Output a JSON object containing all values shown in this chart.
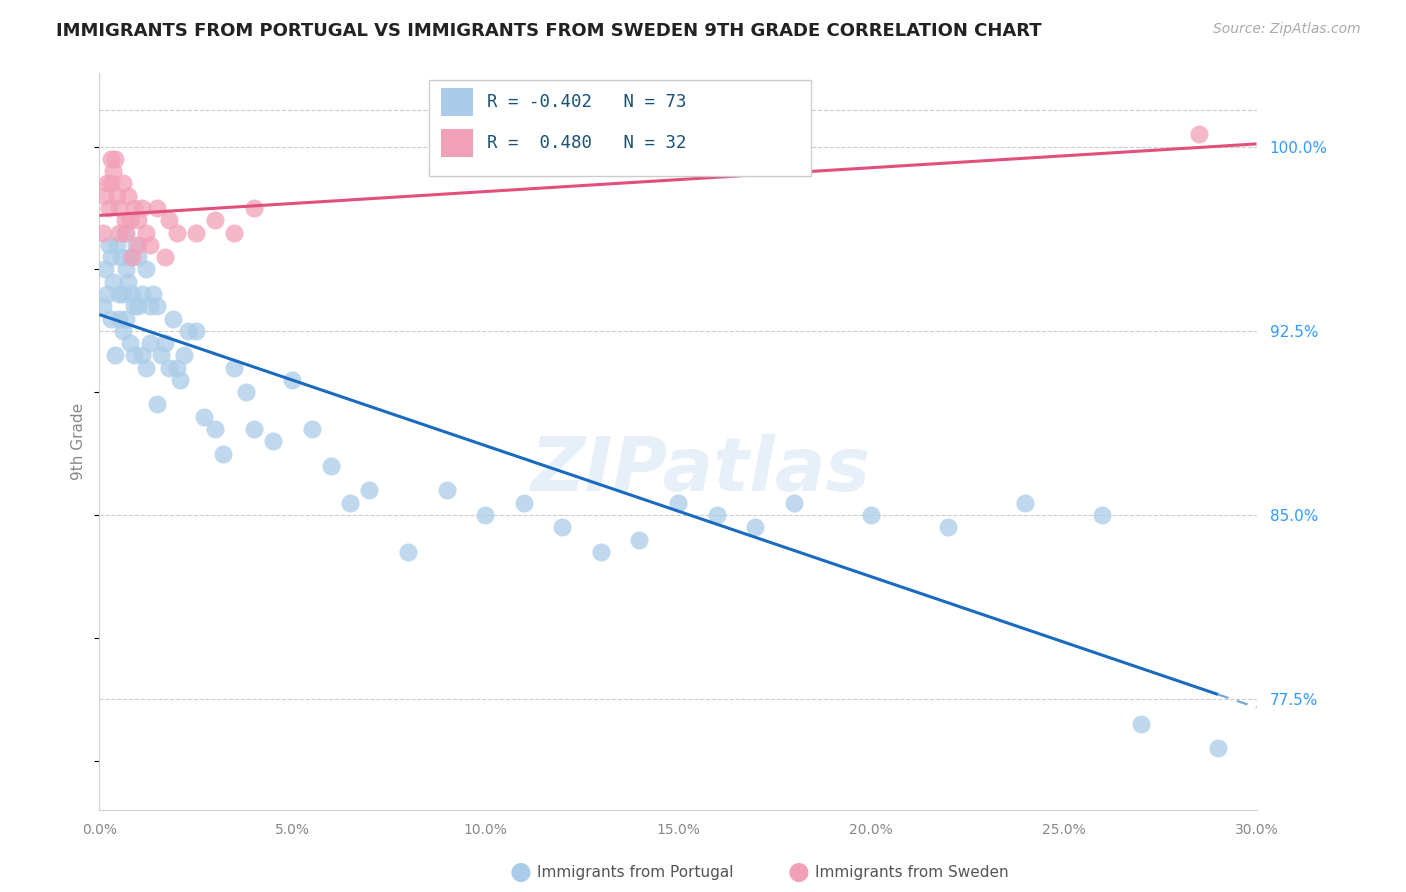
{
  "title": "IMMIGRANTS FROM PORTUGAL VS IMMIGRANTS FROM SWEDEN 9TH GRADE CORRELATION CHART",
  "source": "Source: ZipAtlas.com",
  "ylabel": "9th Grade",
  "ylabel_right_ticks": [
    77.5,
    85.0,
    92.5,
    100.0
  ],
  "xlim": [
    0.0,
    30.0
  ],
  "ylim": [
    73.0,
    103.0
  ],
  "r_portugal": -0.402,
  "n_portugal": 73,
  "r_sweden": 0.48,
  "n_sweden": 32,
  "color_portugal": "#aacce8",
  "color_sweden": "#f2a0b8",
  "line_color_portugal": "#1a6bbf",
  "line_color_sweden": "#e0507a",
  "watermark": "ZIPatlas",
  "portugal_x": [
    0.1,
    0.15,
    0.2,
    0.25,
    0.3,
    0.3,
    0.35,
    0.4,
    0.45,
    0.5,
    0.5,
    0.55,
    0.6,
    0.6,
    0.65,
    0.7,
    0.7,
    0.75,
    0.8,
    0.8,
    0.85,
    0.9,
    0.9,
    0.95,
    1.0,
    1.0,
    1.1,
    1.1,
    1.2,
    1.2,
    1.3,
    1.3,
    1.4,
    1.5,
    1.5,
    1.6,
    1.7,
    1.8,
    1.9,
    2.0,
    2.1,
    2.2,
    2.3,
    2.5,
    2.7,
    3.0,
    3.2,
    3.5,
    3.8,
    4.0,
    4.5,
    5.0,
    5.5,
    6.0,
    6.5,
    7.0,
    8.0,
    9.0,
    10.0,
    11.0,
    12.0,
    13.0,
    14.0,
    15.0,
    16.0,
    17.0,
    18.0,
    20.0,
    22.0,
    24.0,
    26.0,
    27.0,
    29.0
  ],
  "portugal_y": [
    93.5,
    95.0,
    94.0,
    96.0,
    93.0,
    95.5,
    94.5,
    91.5,
    96.0,
    93.0,
    94.0,
    95.5,
    92.5,
    94.0,
    96.5,
    93.0,
    95.0,
    94.5,
    92.0,
    95.5,
    94.0,
    91.5,
    93.5,
    96.0,
    93.5,
    95.5,
    91.5,
    94.0,
    91.0,
    95.0,
    92.0,
    93.5,
    94.0,
    89.5,
    93.5,
    91.5,
    92.0,
    91.0,
    93.0,
    91.0,
    90.5,
    91.5,
    92.5,
    92.5,
    89.0,
    88.5,
    87.5,
    91.0,
    90.0,
    88.5,
    88.0,
    90.5,
    88.5,
    87.0,
    85.5,
    86.0,
    83.5,
    86.0,
    85.0,
    85.5,
    84.5,
    83.5,
    84.0,
    85.5,
    85.0,
    84.5,
    85.5,
    85.0,
    84.5,
    85.5,
    85.0,
    76.5,
    75.5
  ],
  "sweden_x": [
    0.1,
    0.15,
    0.2,
    0.25,
    0.3,
    0.3,
    0.35,
    0.4,
    0.45,
    0.5,
    0.5,
    0.6,
    0.65,
    0.7,
    0.75,
    0.8,
    0.85,
    0.9,
    1.0,
    1.0,
    1.1,
    1.2,
    1.3,
    1.5,
    1.7,
    1.8,
    2.0,
    2.5,
    3.0,
    3.5,
    4.0,
    28.5
  ],
  "sweden_y": [
    96.5,
    98.0,
    98.5,
    97.5,
    99.5,
    98.5,
    99.0,
    99.5,
    98.0,
    97.5,
    96.5,
    98.5,
    97.0,
    96.5,
    98.0,
    97.0,
    95.5,
    97.5,
    96.0,
    97.0,
    97.5,
    96.5,
    96.0,
    97.5,
    95.5,
    97.0,
    96.5,
    96.5,
    97.0,
    96.5,
    97.5,
    100.5
  ],
  "legend_r_port_text": "R = -0.402   N = 73",
  "legend_r_swe_text": "R =  0.480   N = 32",
  "legend_port_label": "Immigrants from Portugal",
  "legend_swe_label": "Immigrants from Sweden"
}
